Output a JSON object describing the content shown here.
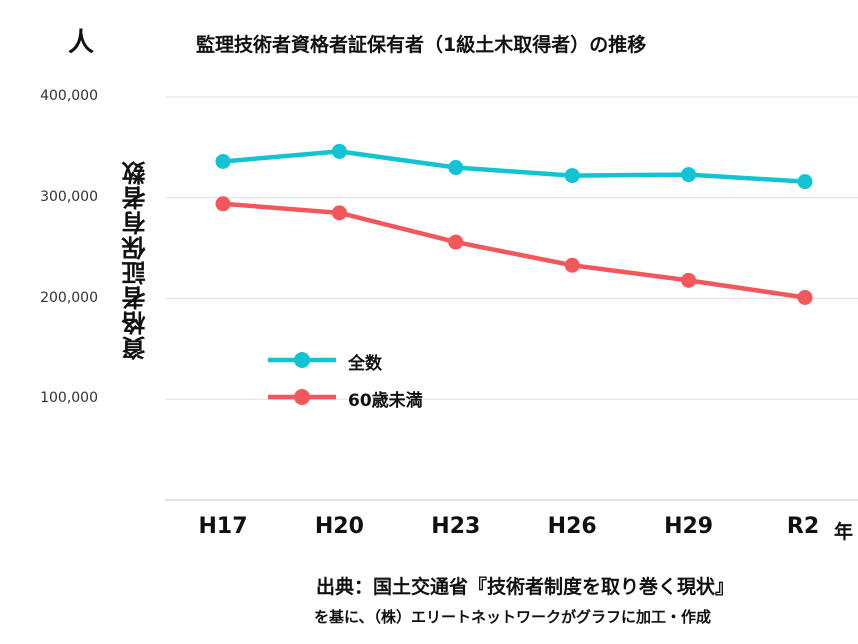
{
  "chart_data": {
    "type": "line",
    "title": "監理技術者資格者証保有者（1級土木取得者）の推移",
    "unit_label": "人",
    "ylabel": "資格者証保有者数",
    "xlabel_unit": "年",
    "categories": [
      "H17",
      "H20",
      "H23",
      "H26",
      "H29",
      "R2"
    ],
    "yticks": [
      "400,000",
      "300,000",
      "200,000",
      "100,000"
    ],
    "ytick_values": [
      400000,
      300000,
      200000,
      100000
    ],
    "ylim": [
      0,
      400000
    ],
    "grid": true,
    "legend_placement": "center-left",
    "series": [
      {
        "name": "全数",
        "color": "#12c3d3",
        "values": [
          336000,
          346000,
          330000,
          322000,
          323000,
          316000
        ]
      },
      {
        "name": "60歳未満",
        "color": "#f2575b",
        "values": [
          294000,
          285000,
          256000,
          233000,
          218000,
          201000
        ]
      }
    ]
  },
  "source": {
    "line1": "出典：国土交通省『技術者制度を取り巻く現状』",
    "line2": "を基に、（株）エリートネットワークがグラフに加工・作成"
  }
}
